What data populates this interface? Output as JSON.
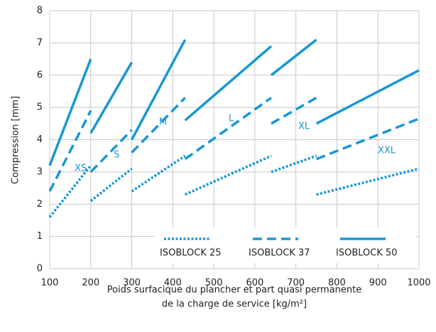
{
  "chart_data": {
    "type": "line",
    "ylabel": "Compression [mm]",
    "xlabel": [
      "Poids surfacique du plancher et part quasi permanente",
      "de la charge de service [kg/m²]"
    ],
    "annotations": [
      "XS",
      "S",
      "M",
      "L",
      "XL",
      "XXL"
    ],
    "xlim": [
      100,
      1000
    ],
    "xticks": [
      100,
      200,
      300,
      400,
      500,
      600,
      700,
      800,
      900,
      1000
    ],
    "ylim": [
      0,
      8
    ],
    "yticks": [
      0,
      1,
      2,
      3,
      4,
      5,
      6,
      7,
      8
    ],
    "grid": true,
    "legend": "lower right",
    "series": [
      {
        "name": "ISOBLOCK 25",
        "color": "#1897d5",
        "style": "dotted",
        "x": [
          100,
          200,
          null,
          200,
          300,
          null,
          300,
          430,
          null,
          430,
          640,
          null,
          640,
          750,
          null,
          750,
          1000
        ],
        "values": [
          1.6,
          3.2,
          null,
          2.1,
          3.1,
          null,
          2.4,
          3.5,
          null,
          2.3,
          3.5,
          null,
          3.0,
          3.5,
          null,
          2.3,
          3.1
        ]
      },
      {
        "name": "ISOBLOCK 37",
        "color": "#1897d5",
        "style": "dashed",
        "x": [
          100,
          200,
          null,
          200,
          300,
          null,
          300,
          430,
          null,
          430,
          640,
          null,
          640,
          750,
          null,
          750,
          1000
        ],
        "values": [
          2.4,
          4.9,
          null,
          3.0,
          4.3,
          null,
          3.6,
          5.3,
          null,
          3.4,
          5.3,
          null,
          4.5,
          5.3,
          null,
          3.4,
          4.65
        ]
      },
      {
        "name": "ISOBLOCK 50",
        "color": "#1897d5",
        "style": "solid",
        "x": [
          100,
          200,
          null,
          200,
          300,
          null,
          300,
          430,
          null,
          430,
          640,
          null,
          640,
          750,
          null,
          750,
          1000
        ],
        "values": [
          3.2,
          6.5,
          null,
          4.2,
          6.4,
          null,
          4.0,
          7.1,
          null,
          4.6,
          6.9,
          null,
          6.0,
          7.1,
          null,
          4.5,
          6.15
        ]
      }
    ]
  }
}
